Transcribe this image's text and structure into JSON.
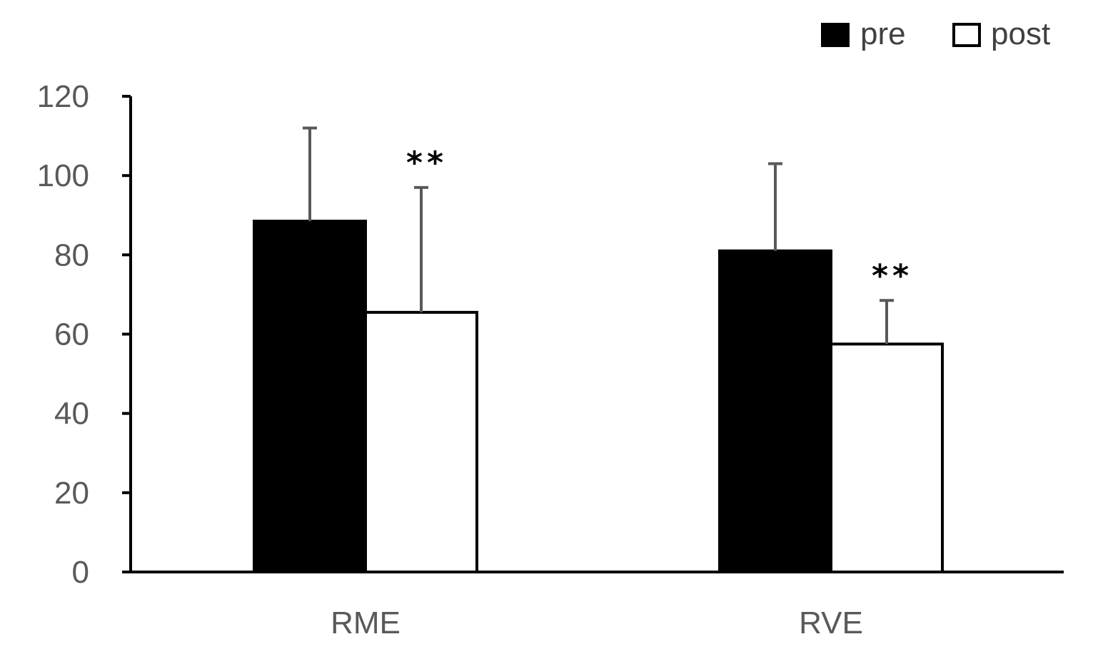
{
  "chart_data": {
    "type": "bar",
    "categories": [
      "RME",
      "RVE"
    ],
    "series": [
      {
        "name": "pre",
        "values": [
          88.5,
          81
        ],
        "error": [
          23.5,
          22
        ],
        "color": "#000000"
      },
      {
        "name": "post",
        "values": [
          65.5,
          57.5
        ],
        "error": [
          31.5,
          11
        ],
        "color": "#ffffff",
        "significance": [
          "**",
          "**"
        ]
      }
    ],
    "ylim": [
      0,
      120
    ],
    "yticks": [
      0,
      20,
      40,
      60,
      80,
      100,
      120
    ],
    "legend_position": "top-right",
    "grid": false
  }
}
